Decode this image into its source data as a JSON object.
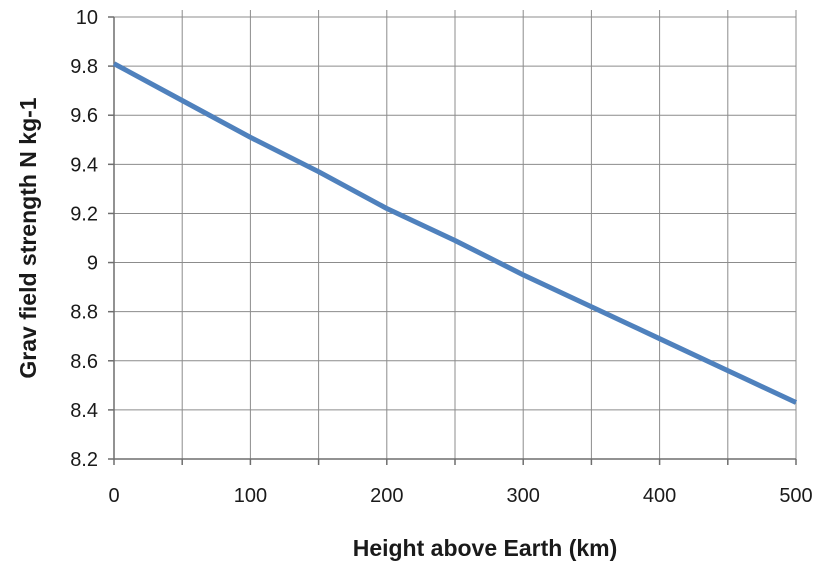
{
  "chart_data": {
    "type": "line",
    "title": "",
    "xlabel": "Height above Earth (km)",
    "ylabel": "Grav field strength  N kg-1",
    "xlim": [
      0,
      500
    ],
    "ylim": [
      8.2,
      10
    ],
    "x_ticks": [
      0,
      50,
      100,
      150,
      200,
      250,
      300,
      350,
      400,
      450,
      500
    ],
    "x_tick_labels": [
      "0",
      "100",
      "200",
      "300",
      "400",
      "500"
    ],
    "x_tick_label_values": [
      0,
      100,
      200,
      300,
      400,
      500
    ],
    "y_ticks": [
      8.2,
      8.4,
      8.6,
      8.8,
      9,
      9.2,
      9.4,
      9.6,
      9.8,
      10
    ],
    "y_tick_labels": [
      "8.2",
      "8.4",
      "8.6",
      "8.8",
      "9",
      "9.2",
      "9.4",
      "9.6",
      "9.8",
      "10"
    ],
    "grid": true,
    "legend": "none",
    "series": [
      {
        "color": "#4f81bd",
        "x": [
          0,
          50,
          100,
          150,
          200,
          250,
          300,
          350,
          400,
          450,
          500
        ],
        "y": [
          9.81,
          9.66,
          9.51,
          9.37,
          9.22,
          9.09,
          8.95,
          8.82,
          8.69,
          8.56,
          8.43
        ]
      }
    ]
  }
}
